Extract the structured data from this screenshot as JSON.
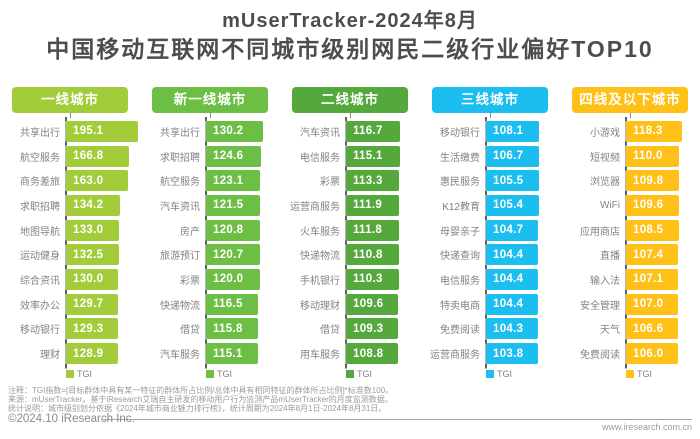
{
  "title": {
    "line1": "mUserTracker-2024年8月",
    "line2": "中国移动互联网不同城市级别网民二级行业偏好TOP10"
  },
  "chart_data": {
    "type": "bar",
    "orientation": "horizontal",
    "value_label": "TGI",
    "title": "mUserTracker-2024年8月中国移动互联网不同城市级别网民二级行业偏好TOP10",
    "groups": [
      {
        "name": "一线城市",
        "color": "#A3CC3A",
        "categories": [
          "共享出行",
          "航空服务",
          "商务差旅",
          "求职招聘",
          "地图导航",
          "运动健身",
          "综合资讯",
          "效率办公",
          "移动银行",
          "理财"
        ],
        "values": [
          195.1,
          166.8,
          163.0,
          134.2,
          133.0,
          132.5,
          130.0,
          129.7,
          129.3,
          128.9
        ]
      },
      {
        "name": "新一线城市",
        "color": "#6CBE45",
        "categories": [
          "共享出行",
          "求职招聘",
          "航空服务",
          "汽车资讯",
          "房产",
          "旅游预订",
          "彩票",
          "快递物流",
          "借贷",
          "汽车服务"
        ],
        "values": [
          130.2,
          124.6,
          123.1,
          121.5,
          120.8,
          120.7,
          120.0,
          116.5,
          115.8,
          115.1
        ]
      },
      {
        "name": "二线城市",
        "color": "#55A93C",
        "categories": [
          "汽车资讯",
          "电信服务",
          "彩票",
          "运营商服务",
          "火车服务",
          "快递物流",
          "手机银行",
          "移动理财",
          "借贷",
          "用车服务"
        ],
        "values": [
          116.7,
          115.1,
          113.3,
          111.9,
          111.8,
          110.8,
          110.3,
          109.6,
          109.3,
          108.8
        ]
      },
      {
        "name": "三线城市",
        "color": "#1CBEF0",
        "categories": [
          "移动银行",
          "生活缴费",
          "惠民服务",
          "K12教育",
          "母婴亲子",
          "快递查询",
          "电信服务",
          "特卖电商",
          "免费阅读",
          "运营商服务"
        ],
        "values": [
          108.1,
          106.7,
          105.5,
          105.4,
          104.7,
          104.4,
          104.4,
          104.4,
          104.3,
          103.8
        ]
      },
      {
        "name": "四线及以下城市",
        "color": "#FFC117",
        "categories": [
          "小游戏",
          "短视频",
          "浏览器",
          "WiFi",
          "应用商店",
          "直播",
          "输入法",
          "安全管理",
          "天气",
          "免费阅读"
        ],
        "values": [
          118.3,
          110.0,
          109.8,
          109.6,
          108.5,
          107.4,
          107.1,
          107.0,
          106.6,
          106.0
        ]
      }
    ]
  },
  "footnotes": [
    "注释：TGI指数=[目标群体中具有某一特征的群体所占比例/总体中具有相同特征的群体所占比例]*标准数100。",
    "来源：mUserTracker。基于iResearch艾瑞自主研发的移动用户行为监测产品mUserTracker的月度监测数据。",
    "统计说明：城市级别划分依据《2024年城市商业魅力排行榜》，统计周期为2024年8月1日-2024年8月31日。"
  ],
  "footer": {
    "copyright": "©2024.10 iResearch Inc.",
    "website": "www.iresearch.com.cn"
  }
}
